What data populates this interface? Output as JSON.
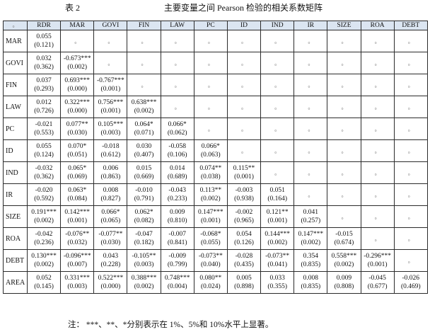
{
  "caption": {
    "label": "表 2",
    "title": "主要变量之间 Pearson 检验的相关系数矩阵"
  },
  "columns": [
    "RDR",
    "MAR",
    "GOVI",
    "FIN",
    "LAW",
    "PC",
    "ID",
    "IND",
    "IR",
    "SIZE",
    "ROA",
    "DEBT"
  ],
  "corner_mark": "。",
  "empty_mark": "。",
  "rows": [
    {
      "name": "MAR",
      "cells": [
        [
          "0.055",
          "(0.121)"
        ]
      ]
    },
    {
      "name": "GOVI",
      "cells": [
        [
          "0.032",
          "(0.362)"
        ],
        [
          "-0.673***",
          "(0.002)"
        ]
      ]
    },
    {
      "name": "FIN",
      "cells": [
        [
          "0.037",
          "(0.293)"
        ],
        [
          "0.693***",
          "(0.000)"
        ],
        [
          "-0.767***",
          "(0.001)"
        ]
      ]
    },
    {
      "name": "LAW",
      "cells": [
        [
          "0.012",
          "(0.726)"
        ],
        [
          "0.322***",
          "(0.000)"
        ],
        [
          "0.756***",
          "(0.001)"
        ],
        [
          "0.638***",
          "(0.002)"
        ]
      ]
    },
    {
      "name": "PC",
      "cells": [
        [
          "-0.021",
          "(0.553)"
        ],
        [
          "0.077**",
          "(0.030)"
        ],
        [
          "0.105***",
          "(0.003)"
        ],
        [
          "0.064*",
          "(0.071)"
        ],
        [
          "0.066*",
          "(0.062)"
        ]
      ]
    },
    {
      "name": "ID",
      "cells": [
        [
          "0.055",
          "(0.124)"
        ],
        [
          "0.070*",
          "(0.051)"
        ],
        [
          "-0.018",
          "(0.612)"
        ],
        [
          "0.030",
          "(0.407)"
        ],
        [
          "-0.058",
          "(0.106)"
        ],
        [
          "0.066*",
          "(0.063)"
        ]
      ]
    },
    {
      "name": "IND",
      "cells": [
        [
          "-0.032",
          "(0.362)"
        ],
        [
          "0.065*",
          "(0.069)"
        ],
        [
          "0.006",
          "(0.863)"
        ],
        [
          "0.015",
          "(0.669)"
        ],
        [
          "0.014",
          "(0.689)"
        ],
        [
          "0.074**",
          "(0.038)"
        ],
        [
          "0.115**",
          "(0.001)"
        ]
      ]
    },
    {
      "name": "IR",
      "cells": [
        [
          "-0.020",
          "(0.592)"
        ],
        [
          "0.063*",
          "(0.084)"
        ],
        [
          "0.008",
          "(0.827)"
        ],
        [
          "-0.010",
          "(0.791)"
        ],
        [
          "-0.043",
          "(0.233)"
        ],
        [
          "0.113**",
          "(0.002)"
        ],
        [
          "-0.003",
          "(0.938)"
        ],
        [
          "0.051",
          "(0.164)"
        ]
      ]
    },
    {
      "name": "SIZE",
      "cells": [
        [
          "0.191***",
          "(0.002)"
        ],
        [
          "0.142***",
          "(0.001)"
        ],
        [
          "0.066*",
          "(0.065)"
        ],
        [
          "0.062*",
          "(0.082)"
        ],
        [
          "0.009",
          "(0.810)"
        ],
        [
          "0.147***",
          "(0.001)"
        ],
        [
          "-0.002",
          "(0.965)"
        ],
        [
          "0.121**",
          "(0.001)"
        ],
        [
          "0.041",
          "(0.257)"
        ]
      ]
    },
    {
      "name": "ROA",
      "cells": [
        [
          "-0.042",
          "(0.236)"
        ],
        [
          "-0.076**",
          "(0.032)"
        ],
        [
          "-0.077**",
          "(0.030)"
        ],
        [
          "-0.047",
          "(0.182)"
        ],
        [
          "-0.007",
          "(0.841)"
        ],
        [
          "-0.068*",
          "(0.055)"
        ],
        [
          "0.054",
          "(0.126)"
        ],
        [
          "0.144***",
          "(0.002)"
        ],
        [
          "0.147***",
          "(0.002)"
        ],
        [
          "-0.015",
          "(0.674)"
        ]
      ]
    },
    {
      "name": "DEBT",
      "cells": [
        [
          "0.130***",
          "(0.002)"
        ],
        [
          "-0.096***",
          "(0.007)"
        ],
        [
          "0.043",
          "(0.228)"
        ],
        [
          "-0.105**",
          "(0.003)"
        ],
        [
          "-0.009",
          "(0.799)"
        ],
        [
          "-0.073**",
          "(0.040)"
        ],
        [
          "-0.028",
          "(0.435)"
        ],
        [
          "-0.073**",
          "(0.041)"
        ],
        [
          "0.354",
          "(0.835)"
        ],
        [
          "0.558***",
          "(0.002)"
        ],
        [
          "-0.296***",
          "(0.001)"
        ]
      ]
    },
    {
      "name": "AREA",
      "cells": [
        [
          "0.052",
          "(0.145)"
        ],
        [
          "0.331***",
          "(0.003)"
        ],
        [
          "0.522***",
          "(0.000)"
        ],
        [
          "0.388***",
          "(0.002)"
        ],
        [
          "0.748***",
          "(0.004)"
        ],
        [
          "0.080**",
          "(0.024)"
        ],
        [
          "0.005",
          "(0.898)"
        ],
        [
          "0.033",
          "(0.355)"
        ],
        [
          "0.008",
          "(0.835)"
        ],
        [
          "0.009",
          "(0.808)"
        ],
        [
          "-0.045",
          "(0.677)"
        ],
        [
          "-0.026",
          "(0.469)"
        ]
      ]
    }
  ],
  "note": "注：  ***、**、*分别表示在 1%、5%和 10%水平上显著。"
}
